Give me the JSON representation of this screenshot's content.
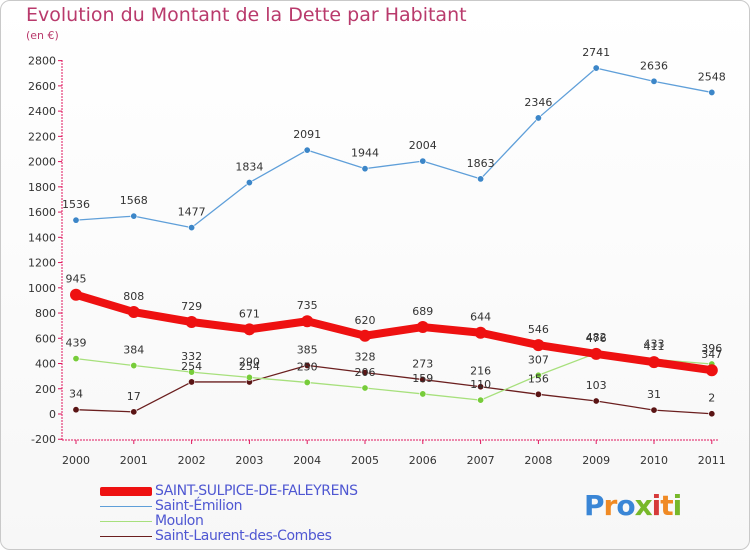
{
  "header": {
    "title": "Evolution du Montant de la Dette par Habitant",
    "subtitle": "(en €)"
  },
  "logo": {
    "text": "Proxiti",
    "colors": [
      "#3a86d6",
      "#f08a24",
      "#3a86d6",
      "#77b82a",
      "#d63a3a",
      "#f08a24",
      "#77b82a"
    ]
  },
  "chart_data": {
    "type": "line",
    "title": "Evolution du Montant de la Dette par Habitant",
    "ylabel": "(en €)",
    "xlabel": "",
    "x": [
      "2000",
      "2001",
      "2002",
      "2003",
      "2004",
      "2005",
      "2006",
      "2007",
      "2008",
      "2009",
      "2010",
      "2011"
    ],
    "ylim": [
      -200,
      2800
    ],
    "yticks": [
      -200,
      0,
      200,
      400,
      600,
      800,
      1000,
      1200,
      1400,
      1600,
      1800,
      2000,
      2200,
      2400,
      2600,
      2800
    ],
    "grid": false,
    "legend_position": "bottom-left",
    "series": [
      {
        "name": "SAINT-SULPICE-DE-FALEYRENS",
        "color": "#ee1111",
        "values": [
          945,
          808,
          729,
          671,
          735,
          620,
          689,
          644,
          546,
          476,
          411,
          347
        ]
      },
      {
        "name": "Saint-Émilion",
        "color": "#5f9fd9",
        "values": [
          1536,
          1568,
          1477,
          1834,
          2091,
          1944,
          2004,
          1863,
          2346,
          2741,
          2636,
          2548
        ]
      },
      {
        "name": "Moulon",
        "color": "#a7e07c",
        "values": [
          439,
          384,
          332,
          290,
          250,
          206,
          159,
          110,
          307,
          482,
          433,
          396
        ]
      },
      {
        "name": "Saint-Laurent-des-Combes",
        "color": "#6b1f1f",
        "values": [
          34,
          17,
          254,
          254,
          385,
          328,
          273,
          216,
          156,
          103,
          31,
          2
        ]
      }
    ]
  }
}
